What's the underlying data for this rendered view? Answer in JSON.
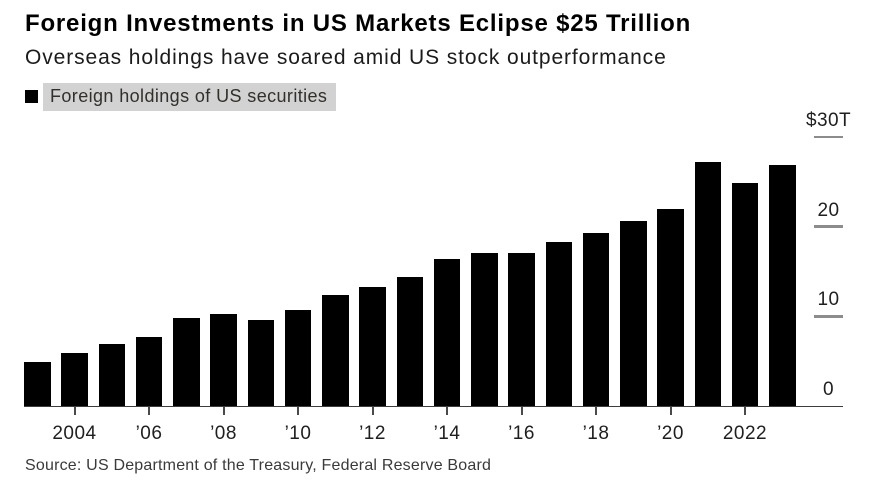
{
  "header": {
    "title": "Foreign Investments in US Markets Eclipse $25 Trillion",
    "subtitle": "Overseas holdings have soared amid US stock outperformance"
  },
  "legend": {
    "label": "Foreign holdings of US securities",
    "swatch_color": "#000000",
    "highlight_color": "#d2d2d2"
  },
  "footer": {
    "source": "Source: US Department of the Treasury, Federal Reserve Board"
  },
  "colors": {
    "background": "#ffffff",
    "bar": "#000000",
    "axis_line": "#3d3d3d",
    "x_tick": "#4a4a4a",
    "y_dash": "#8c8c8c",
    "axis_text": "#1f1f1f"
  },
  "chart_data": {
    "type": "bar",
    "title": "Foreign Investments in US Markets Eclipse $25 Trillion",
    "subtitle": "Overseas holdings have soared amid US stock outperformance",
    "legend_entries": [
      "Foreign holdings of US securities"
    ],
    "legend_position": "top-left",
    "unit": "USD trillions",
    "xlabel": "",
    "ylabel": "",
    "ylim": [
      0,
      30
    ],
    "grid": "right-edge dash ticks only",
    "categories": [
      2003,
      2004,
      2005,
      2006,
      2007,
      2008,
      2009,
      2010,
      2011,
      2012,
      2013,
      2014,
      2015,
      2016,
      2017,
      2018,
      2019,
      2020,
      2021,
      2022,
      2023
    ],
    "values": [
      4.9,
      5.9,
      6.9,
      7.7,
      9.8,
      10.3,
      9.6,
      10.7,
      12.4,
      13.3,
      14.4,
      16.4,
      17.1,
      17.1,
      18.3,
      19.3,
      20.6,
      21.9,
      27.2,
      24.9,
      26.8
    ],
    "x_ticks": [
      {
        "year": 2004,
        "label": "2004"
      },
      {
        "year": 2006,
        "label": "’06"
      },
      {
        "year": 2008,
        "label": "’08"
      },
      {
        "year": 2010,
        "label": "’10"
      },
      {
        "year": 2012,
        "label": "’12"
      },
      {
        "year": 2014,
        "label": "’14"
      },
      {
        "year": 2016,
        "label": "’16"
      },
      {
        "year": 2018,
        "label": "’18"
      },
      {
        "year": 2020,
        "label": "’20"
      },
      {
        "year": 2022,
        "label": "2022"
      }
    ],
    "y_ticks": [
      {
        "value": 30,
        "label": "$30T"
      },
      {
        "value": 20,
        "label": "20"
      },
      {
        "value": 10,
        "label": "10"
      },
      {
        "value": 0,
        "label": "0"
      }
    ]
  }
}
